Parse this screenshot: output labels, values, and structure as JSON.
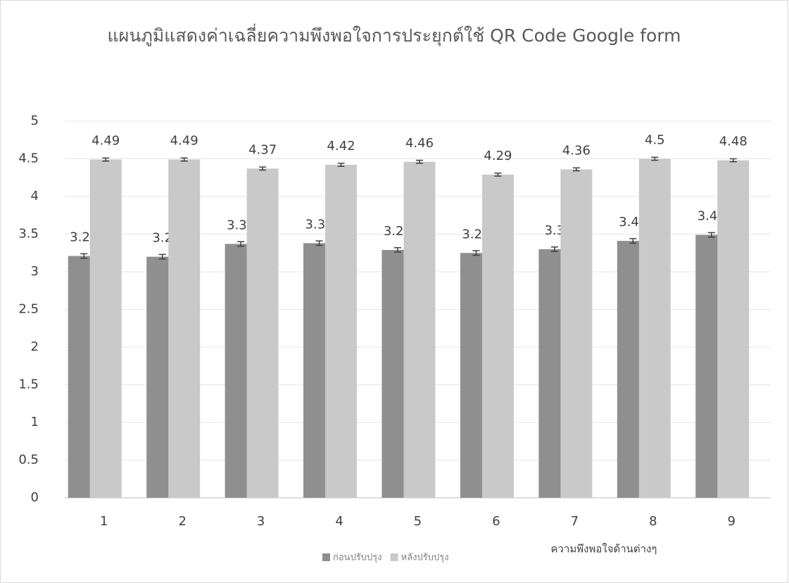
{
  "chart_data": {
    "type": "bar",
    "title": "แผนภูมิแสดงค่าเฉลี่ยความพึงพอใจการประยุกต์ใช้ QR Code Google form",
    "x_label": "ความพึงพอใจด้านต่างๆ",
    "categories": [
      "1",
      "2",
      "3",
      "4",
      "5",
      "6",
      "7",
      "8",
      "9"
    ],
    "series": [
      {
        "name": "ก่อนปรับปรุง",
        "color": "#8f8f8f",
        "values": [
          3.21,
          3.2,
          3.37,
          3.38,
          3.29,
          3.25,
          3.3,
          3.41,
          3.49
        ],
        "errors": [
          0.03,
          0.03,
          0.03,
          0.03,
          0.03,
          0.03,
          0.03,
          0.03,
          0.03
        ]
      },
      {
        "name": "หลังปรับปรุง",
        "color": "#c9c9c9",
        "values": [
          4.49,
          4.49,
          4.37,
          4.42,
          4.46,
          4.29,
          4.36,
          4.5,
          4.48
        ],
        "errors": [
          0.02,
          0.02,
          0.02,
          0.02,
          0.02,
          0.02,
          0.02,
          0.02,
          0.02
        ]
      }
    ],
    "ylim": [
      0,
      5
    ],
    "yticks": [
      0,
      0.5,
      1,
      1.5,
      2,
      2.5,
      3,
      3.5,
      4,
      4.5,
      5
    ],
    "grid": true,
    "legend": "bottom"
  }
}
